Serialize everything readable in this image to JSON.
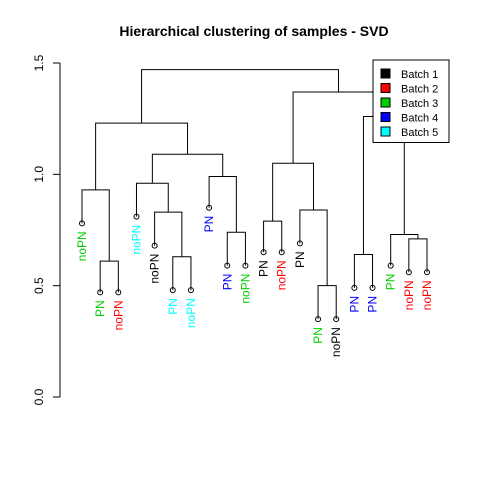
{
  "chart_data": {
    "type": "dendrogram",
    "title": "Hierarchical clustering of samples - SVD",
    "xlabel": "",
    "ylabel": "",
    "ylim": [
      0,
      1.5
    ],
    "yticks": [
      0.0,
      0.5,
      1.0,
      1.5
    ],
    "ytick_labels": [
      "0.0",
      "0.5",
      "1.0",
      "1.5"
    ],
    "grid": false,
    "legend_position": "top-right",
    "legend": [
      {
        "label": "Batch 1",
        "color": "#000000"
      },
      {
        "label": "Batch 2",
        "color": "#ff0000"
      },
      {
        "label": "Batch 3",
        "color": "#00cd00"
      },
      {
        "label": "Batch 4",
        "color": "#0000ff"
      },
      {
        "label": "Batch 5",
        "color": "#00ffff"
      }
    ],
    "leaves": [
      {
        "label": "noPN",
        "batch": 3,
        "height": 0.78
      },
      {
        "label": "PN",
        "batch": 3,
        "height": 0.47
      },
      {
        "label": "noPN",
        "batch": 2,
        "height": 0.47
      },
      {
        "label": "noPN",
        "batch": 5,
        "height": 0.81
      },
      {
        "label": "noPN",
        "batch": 1,
        "height": 0.68
      },
      {
        "label": "PN",
        "batch": 5,
        "height": 0.48
      },
      {
        "label": "noPN",
        "batch": 5,
        "height": 0.48
      },
      {
        "label": "PN",
        "batch": 4,
        "height": 0.85
      },
      {
        "label": "PN",
        "batch": 4,
        "height": 0.59
      },
      {
        "label": "noPN",
        "batch": 3,
        "height": 0.59
      },
      {
        "label": "PN",
        "batch": 1,
        "height": 0.65
      },
      {
        "label": "noPN",
        "batch": 2,
        "height": 0.65
      },
      {
        "label": "PN",
        "batch": 1,
        "height": 0.69
      },
      {
        "label": "PN",
        "batch": 3,
        "height": 0.35
      },
      {
        "label": "noPN",
        "batch": 1,
        "height": 0.35
      },
      {
        "label": "PN",
        "batch": 4,
        "height": 0.49
      },
      {
        "label": "PN",
        "batch": 4,
        "height": 0.49
      },
      {
        "label": "PN",
        "batch": 3,
        "height": 0.59
      },
      {
        "label": "noPN",
        "batch": 2,
        "height": 0.56
      },
      {
        "label": "noPN",
        "batch": 2,
        "height": 0.56
      }
    ],
    "merges": [
      {
        "a": "L1",
        "b": "L2",
        "height": 0.61
      },
      {
        "a": "L0",
        "b": "M0",
        "height": 0.93
      },
      {
        "a": "L5",
        "b": "L6",
        "height": 0.63
      },
      {
        "a": "L4",
        "b": "M2",
        "height": 0.83
      },
      {
        "a": "L3",
        "b": "M3",
        "height": 0.96
      },
      {
        "a": "L8",
        "b": "L9",
        "height": 0.74
      },
      {
        "a": "L7",
        "b": "M5",
        "height": 0.99
      },
      {
        "a": "M4",
        "b": "M6",
        "height": 1.09
      },
      {
        "a": "M1",
        "b": "M7",
        "height": 1.23
      },
      {
        "a": "L10",
        "b": "L11",
        "height": 0.79
      },
      {
        "a": "L13",
        "b": "L14",
        "height": 0.5
      },
      {
        "a": "L12",
        "b": "M10",
        "height": 0.84
      },
      {
        "a": "M9",
        "b": "M11",
        "height": 1.05
      },
      {
        "a": "L15",
        "b": "L16",
        "height": 0.64
      },
      {
        "a": "L18",
        "b": "L19",
        "height": 0.71
      },
      {
        "a": "L17",
        "b": "M14",
        "height": 0.73
      },
      {
        "a": "M13",
        "b": "M15",
        "height": 1.26
      },
      {
        "a": "M12",
        "b": "M16",
        "height": 1.37
      },
      {
        "a": "M8",
        "b": "M17",
        "height": 1.47
      }
    ]
  }
}
